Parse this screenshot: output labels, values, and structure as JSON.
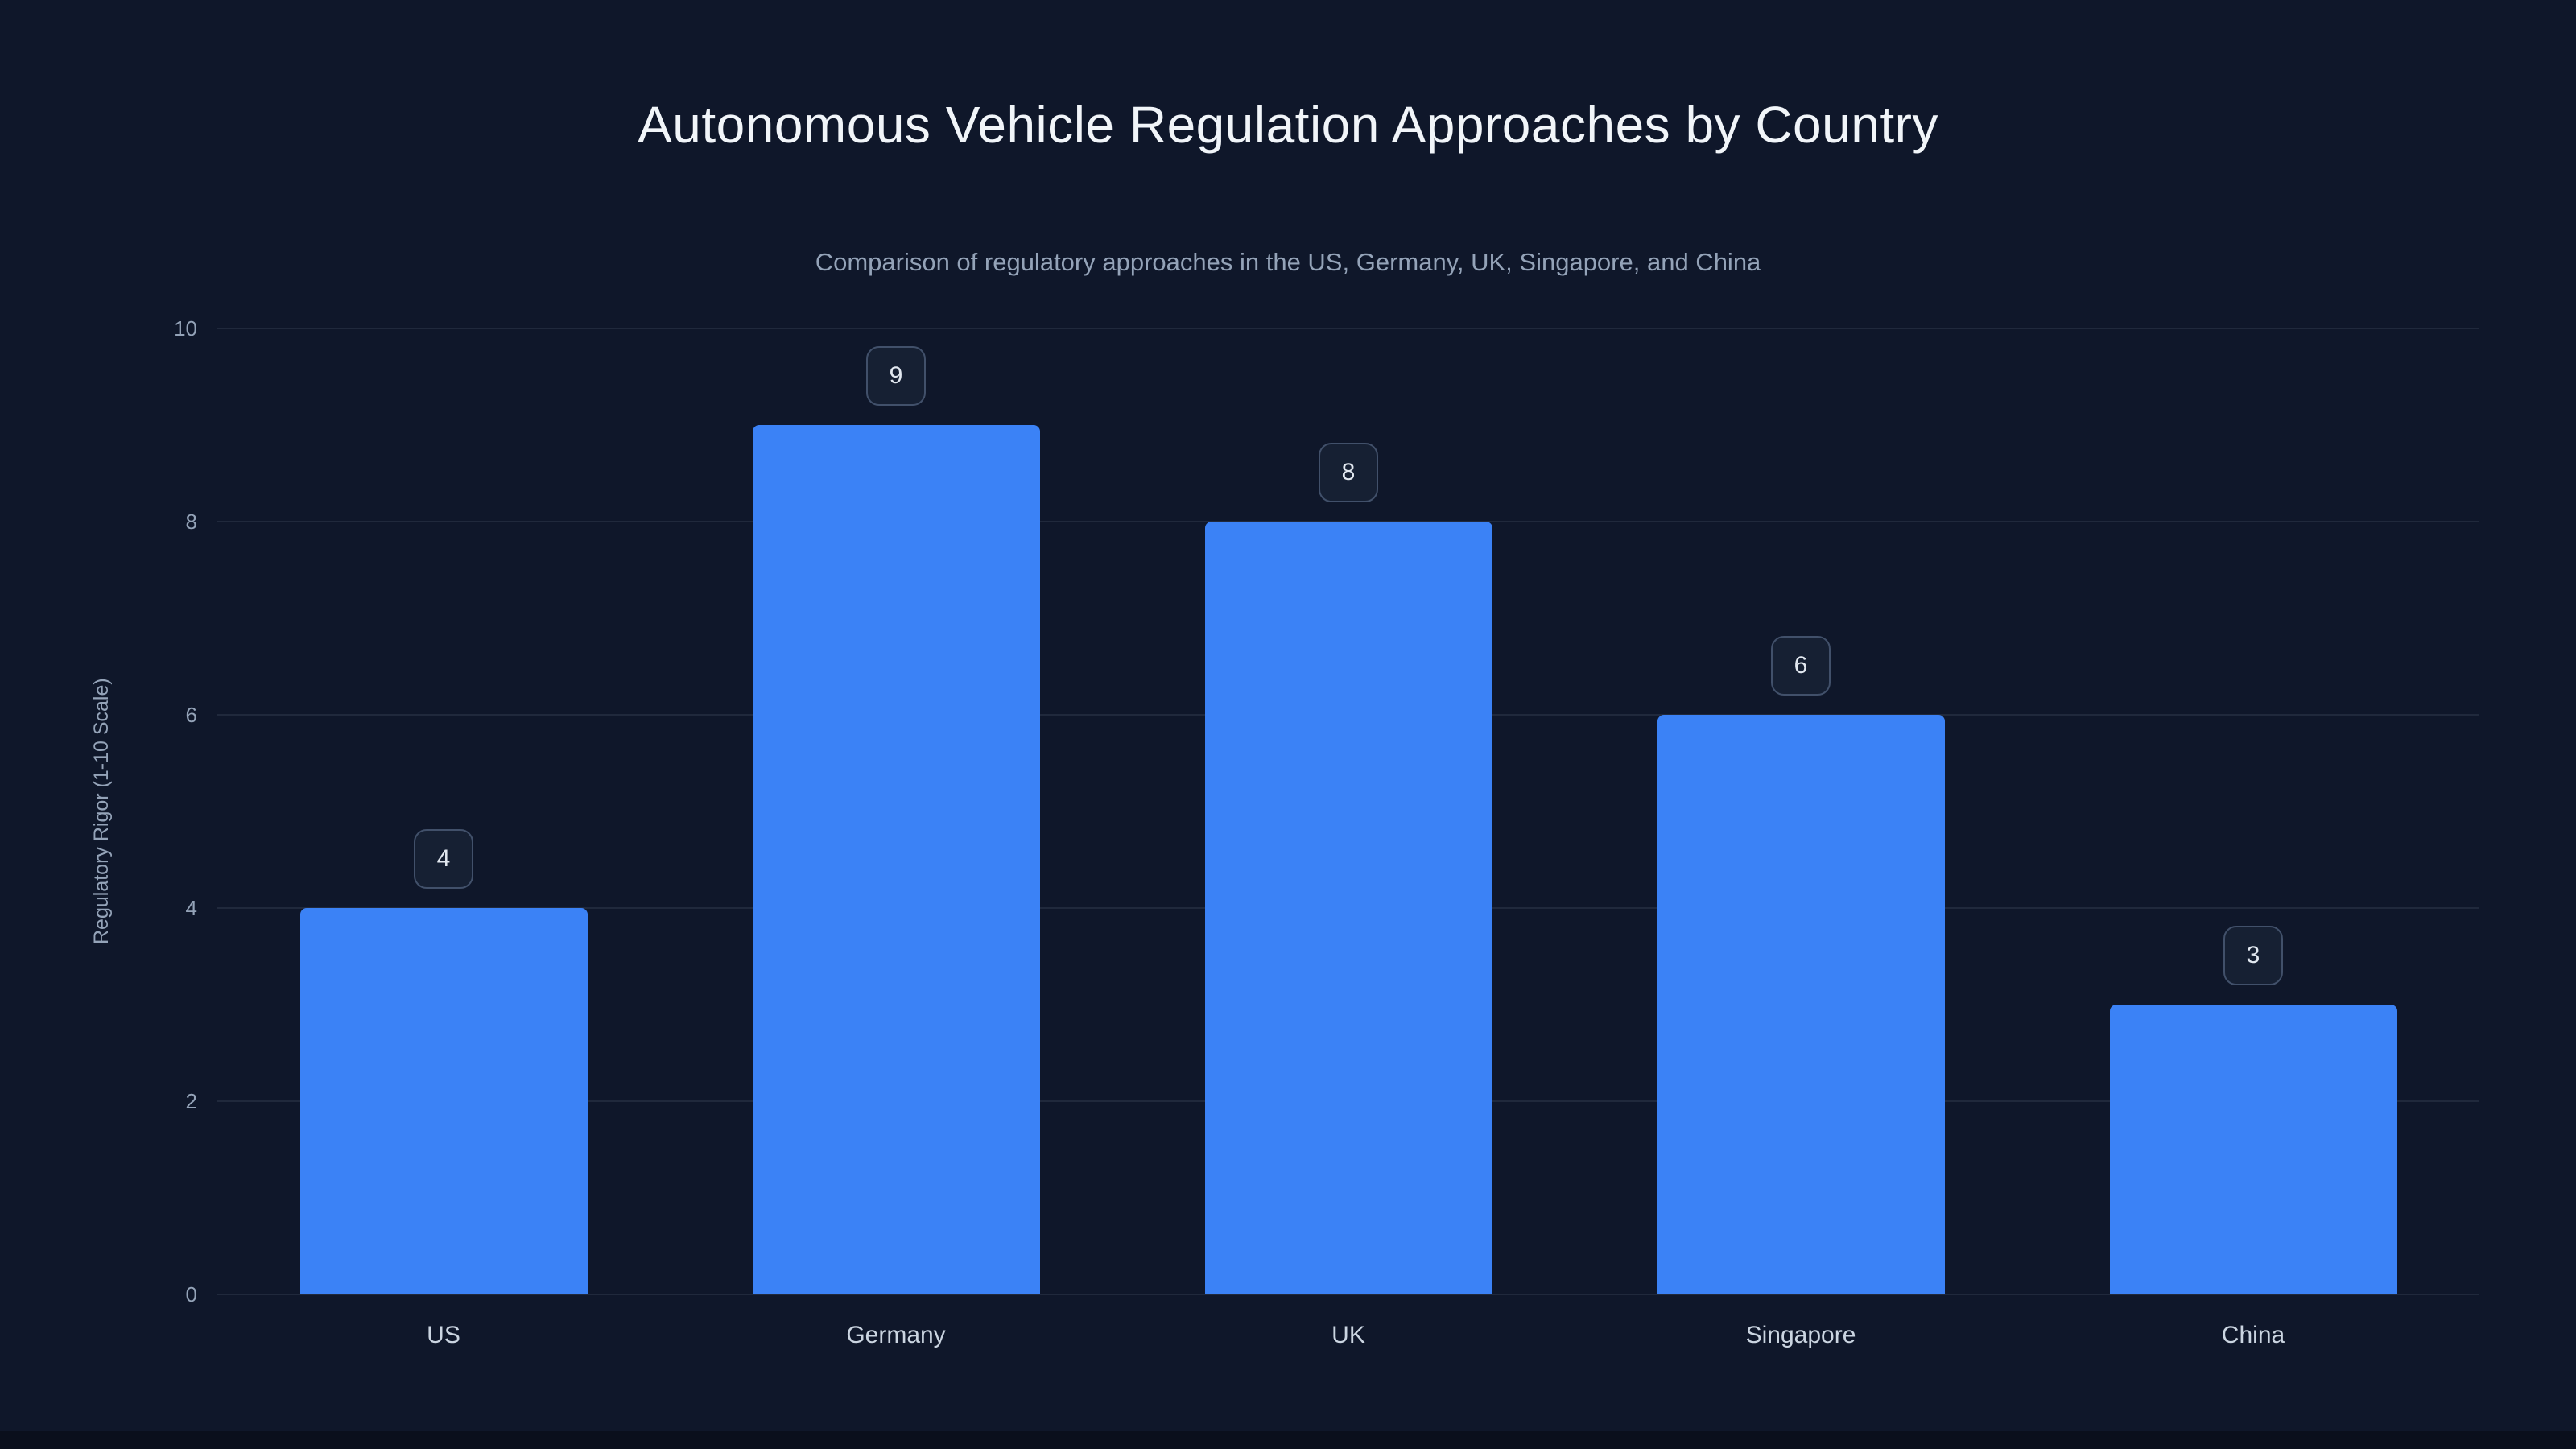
{
  "page": {
    "title": "Autonomous Vehicle Regulation Approaches by Country",
    "subtitle": "Comparison of regulatory approaches in the US, Germany, UK, Singapore, and China"
  },
  "chart_data": {
    "type": "bar",
    "title": "Autonomous Vehicle Regulation Approaches by Country",
    "subtitle": "Comparison of regulatory approaches in the US, Germany, UK, Singapore, and China",
    "categories": [
      "US",
      "Germany",
      "UK",
      "Singapore",
      "China"
    ],
    "values": [
      4,
      9,
      8,
      6,
      3
    ],
    "xlabel": "",
    "ylabel": "Regulatory Rigor (1-10 Scale)",
    "ylim": [
      0,
      10
    ],
    "yticks": [
      0,
      2,
      4,
      6,
      8,
      10
    ],
    "grid": true,
    "legend": false,
    "bar_color": "#3b82f6",
    "background_color": "#0f172a",
    "title_color": "#f1f5f9",
    "subtitle_color": "#94a3b8",
    "tick_color": "#94a3b8",
    "badge_border_color": "#41506a",
    "badge_text_color": "#e2e8f0"
  }
}
